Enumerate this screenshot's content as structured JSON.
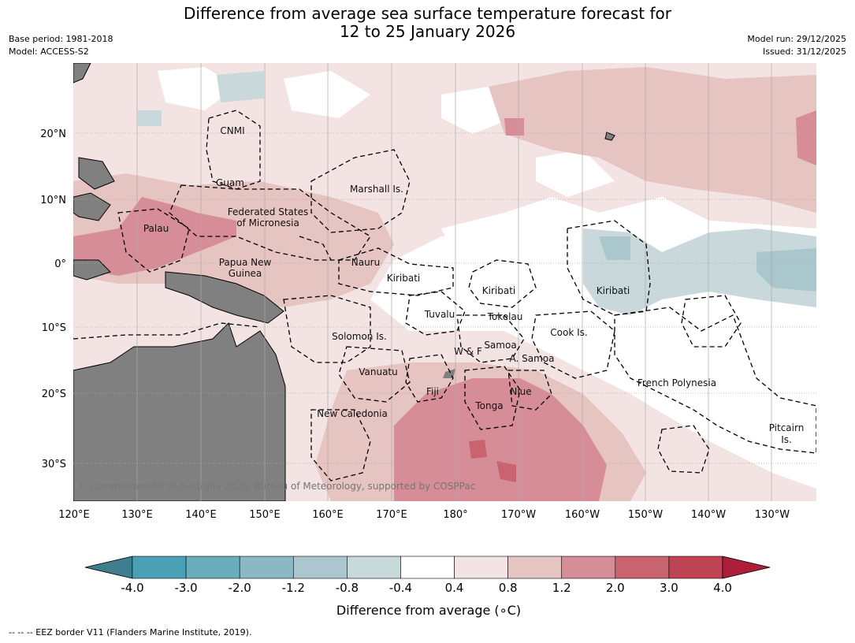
{
  "title": {
    "line1": "Difference from average sea surface temperature forecast for",
    "line2": "12 to 25 January 2026"
  },
  "meta": {
    "base_period": "Base period: 1981-2018",
    "model": "Model: ACCESS-S2",
    "model_run": "Model run: 29/12/2025",
    "issued": "Issued: 31/12/2025"
  },
  "map": {
    "longitude_ticks": [
      "120°E",
      "130°E",
      "140°E",
      "150°E",
      "160°E",
      "170°E",
      "180°",
      "170°W",
      "160°W",
      "150°W",
      "140°W",
      "130°W"
    ],
    "latitude_ticks": [
      "20°N",
      "10°N",
      "0°",
      "10°S",
      "20°S",
      "30°S"
    ],
    "places": [
      "CNMI",
      "Guam",
      "Marshall Is.",
      "Federated States",
      "of Micronesia",
      "Palau",
      "Papua New",
      "Guinea",
      "Nauru",
      "Kiribati",
      "Kiribati",
      "Kiribati",
      "Tuvalu",
      "Tokelau",
      "Solomon Is.",
      "Cook Is.",
      "Samoa",
      "W & F",
      "A. Samoa",
      "Vanuatu",
      "Fiji",
      "Niue",
      "Tonga",
      "French Polynesia",
      "New Caledonia",
      "Pitcairn",
      "Is."
    ],
    "copyright": "© Commonwealth of Australia 2025, Bureau of Meteorology, supported by COSPPac",
    "colors": {
      "land": "#808080",
      "ocean_neutral": "#ffffff",
      "gridline": "#aaaaaa"
    }
  },
  "colorbar": {
    "ticks": [
      "-4.0",
      "-3.0",
      "-2.0",
      "-1.2",
      "-0.8",
      "-0.4",
      "0.4",
      "0.8",
      "1.2",
      "2.0",
      "3.0",
      "4.0"
    ],
    "colors": [
      "#3d7f8c",
      "#4aa0b5",
      "#6aaebd",
      "#8bb8c4",
      "#a9c7cd",
      "#c8d8db",
      "#ffffff",
      "#f3e4e3",
      "#e6c4c1",
      "#d68d97",
      "#c9636f",
      "#be4454",
      "#ad1e3a"
    ],
    "label": "Difference from average ($^\\circ$C)",
    "label_display": "Difference from average (",
    "label_unit": "∘C)"
  },
  "footer": {
    "eez_note": "--  --  -- EEZ border V11 (Flanders Marine Institute, 2019)."
  }
}
